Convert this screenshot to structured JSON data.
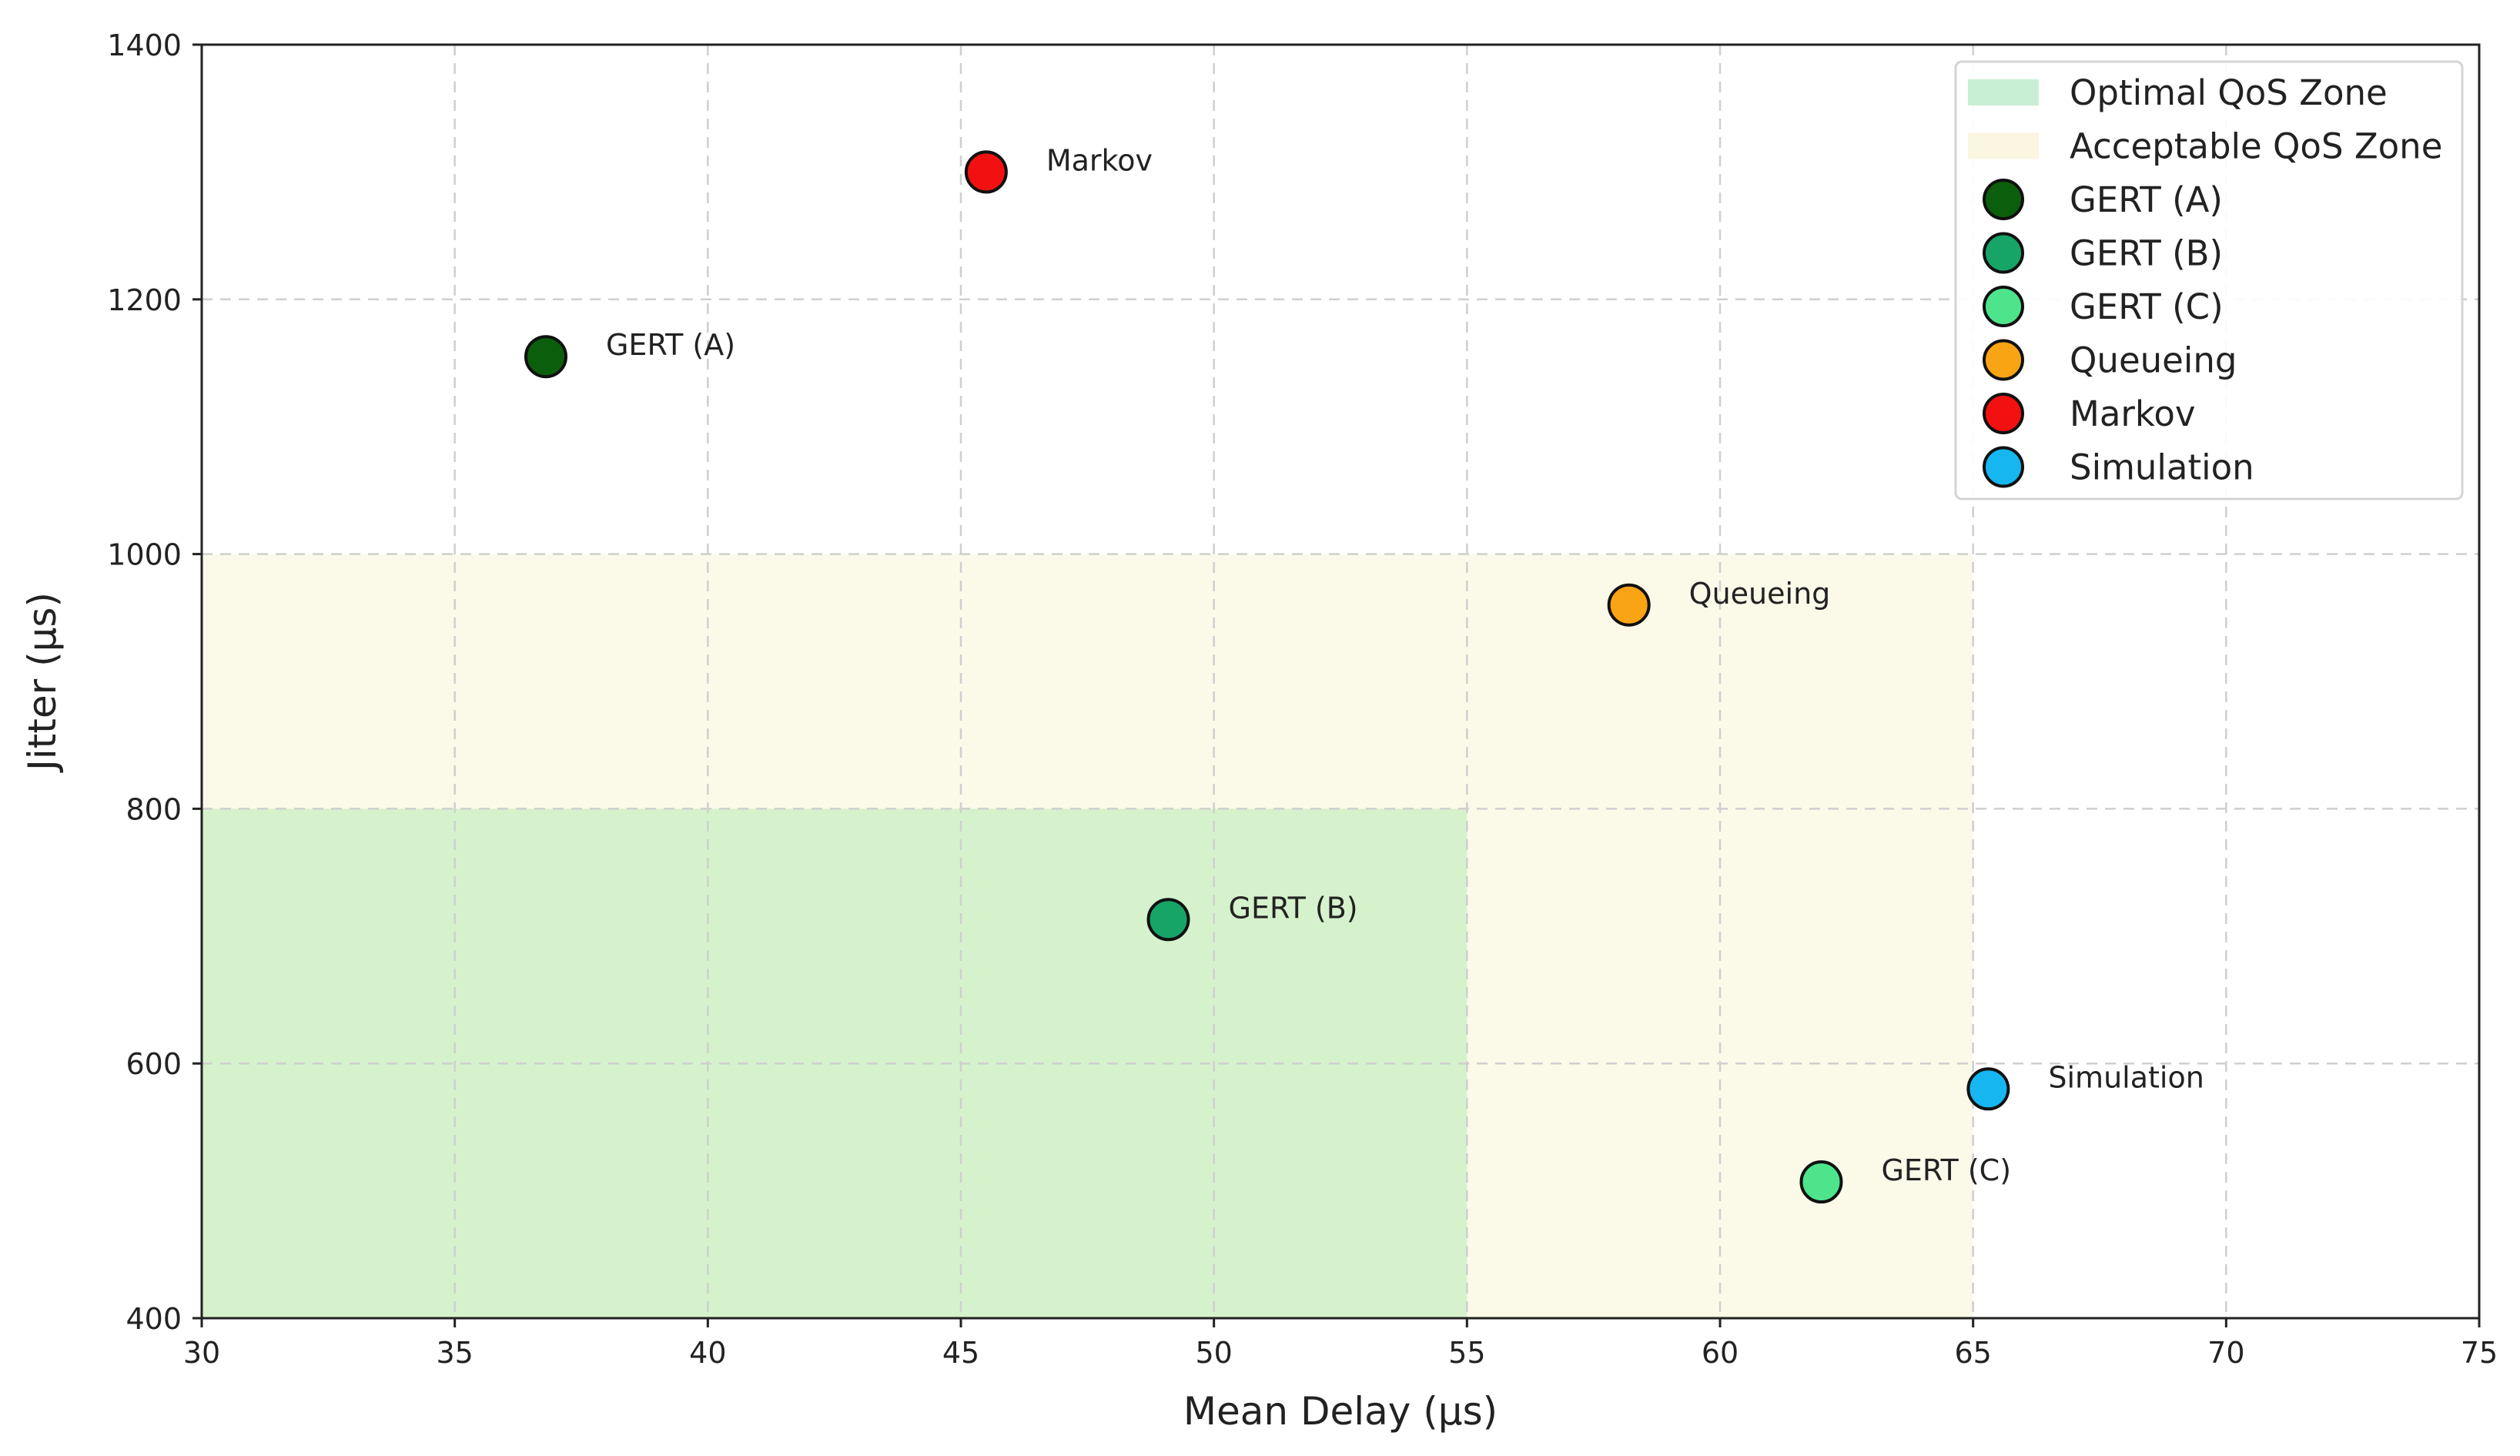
{
  "chart_data": {
    "type": "scatter",
    "title": "",
    "xlabel": "Mean Delay (µs)",
    "ylabel": "Jitter (µs)",
    "xlim": [
      30,
      75
    ],
    "ylim": [
      400,
      1400
    ],
    "xticks": [
      30,
      35,
      40,
      45,
      50,
      55,
      60,
      65,
      70,
      75
    ],
    "yticks": [
      400,
      600,
      800,
      1000,
      1200,
      1400
    ],
    "grid": true,
    "legend_position": "top-right",
    "zones": [
      {
        "name": "Optimal QoS Zone",
        "x": [
          30,
          55
        ],
        "y": [
          400,
          800
        ],
        "color": "#d5f2cc",
        "legend_color": "#c8efd3"
      },
      {
        "name": "Acceptable QoS Zone",
        "x": [
          30,
          65
        ],
        "y": [
          400,
          1000
        ],
        "color": "#fbf9e8",
        "legend_color": "#faf6e2"
      }
    ],
    "series": [
      {
        "name": "GERT (A)",
        "x": 36.8,
        "y": 1155,
        "color": "#0b5e0b"
      },
      {
        "name": "GERT (B)",
        "x": 49.1,
        "y": 713,
        "color": "#17a567"
      },
      {
        "name": "GERT (C)",
        "x": 62.0,
        "y": 507,
        "color": "#4ee48c"
      },
      {
        "name": "Queueing",
        "x": 58.2,
        "y": 960,
        "color": "#f9a414"
      },
      {
        "name": "Markov",
        "x": 45.5,
        "y": 1300,
        "color": "#f21010"
      },
      {
        "name": "Simulation",
        "x": 65.3,
        "y": 580,
        "color": "#16b6f0"
      }
    ]
  }
}
